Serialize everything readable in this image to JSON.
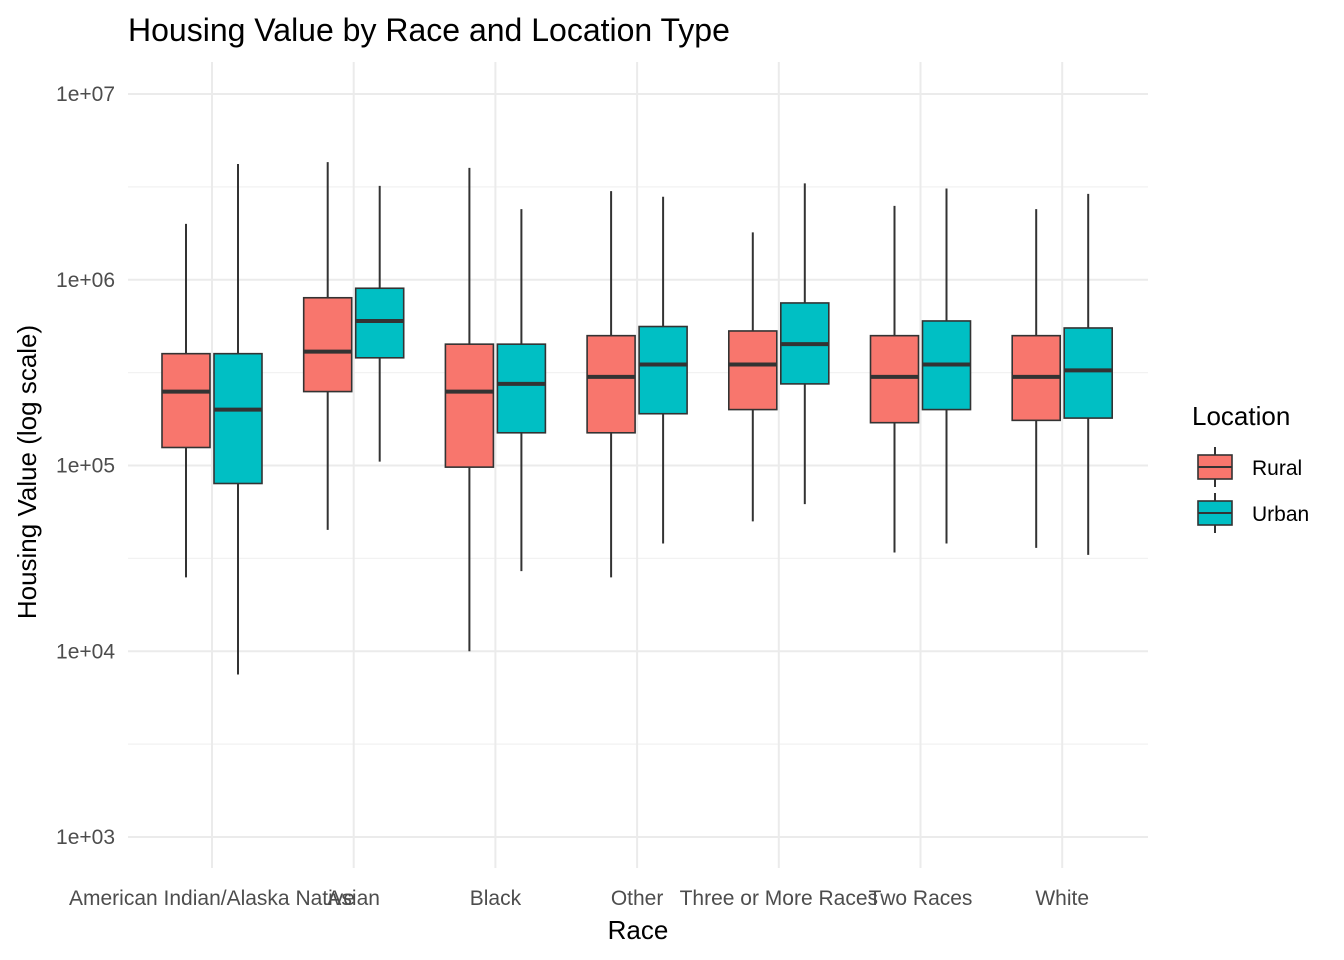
{
  "chart_data": {
    "type": "boxplot",
    "title": "Housing Value by Race and Location Type",
    "xlabel": "Race",
    "ylabel": "Housing Value (log scale)",
    "y_scale": "log10",
    "ylim": [
      500,
      15000000
    ],
    "y_ticks": [
      {
        "value": 1000,
        "label": "1e+03"
      },
      {
        "value": 10000,
        "label": "1e+04"
      },
      {
        "value": 100000,
        "label": "1e+05"
      },
      {
        "value": 1000000,
        "label": "1e+06"
      },
      {
        "value": 10000000,
        "label": "1e+07"
      }
    ],
    "categories": [
      "American Indian/Alaska Native",
      "Asian",
      "Black",
      "Other",
      "Three or More Races",
      "Two Races",
      "White"
    ],
    "grid": true,
    "legend": {
      "title": "Location",
      "placement": "right"
    },
    "series": [
      {
        "name": "Rural",
        "color": "#F8766D",
        "boxes": [
          {
            "min": 25000,
            "q1": 125000,
            "median": 250000,
            "q3": 400000,
            "max": 2000000
          },
          {
            "min": 45000,
            "q1": 250000,
            "median": 410000,
            "q3": 800000,
            "max": 4300000
          },
          {
            "min": 10000,
            "q1": 98000,
            "median": 250000,
            "q3": 450000,
            "max": 4000000
          },
          {
            "min": 25000,
            "q1": 150000,
            "median": 300000,
            "q3": 500000,
            "max": 3000000
          },
          {
            "min": 50000,
            "q1": 200000,
            "median": 350000,
            "q3": 530000,
            "max": 1800000
          },
          {
            "min": 34000,
            "q1": 170000,
            "median": 300000,
            "q3": 500000,
            "max": 2500000
          },
          {
            "min": 36000,
            "q1": 175000,
            "median": 300000,
            "q3": 500000,
            "max": 2400000
          }
        ]
      },
      {
        "name": "Urban",
        "color": "#00BFC4",
        "boxes": [
          {
            "min": 7500,
            "q1": 80000,
            "median": 200000,
            "q3": 400000,
            "max": 4200000
          },
          {
            "min": 105000,
            "q1": 380000,
            "median": 600000,
            "q3": 900000,
            "max": 3200000
          },
          {
            "min": 27000,
            "q1": 150000,
            "median": 275000,
            "q3": 450000,
            "max": 2400000
          },
          {
            "min": 38000,
            "q1": 190000,
            "median": 350000,
            "q3": 560000,
            "max": 2800000
          },
          {
            "min": 62000,
            "q1": 275000,
            "median": 450000,
            "q3": 750000,
            "max": 3300000
          },
          {
            "min": 38000,
            "q1": 200000,
            "median": 350000,
            "q3": 600000,
            "max": 3100000
          },
          {
            "min": 33000,
            "q1": 180000,
            "median": 325000,
            "q3": 550000,
            "max": 2900000
          }
        ]
      }
    ]
  }
}
